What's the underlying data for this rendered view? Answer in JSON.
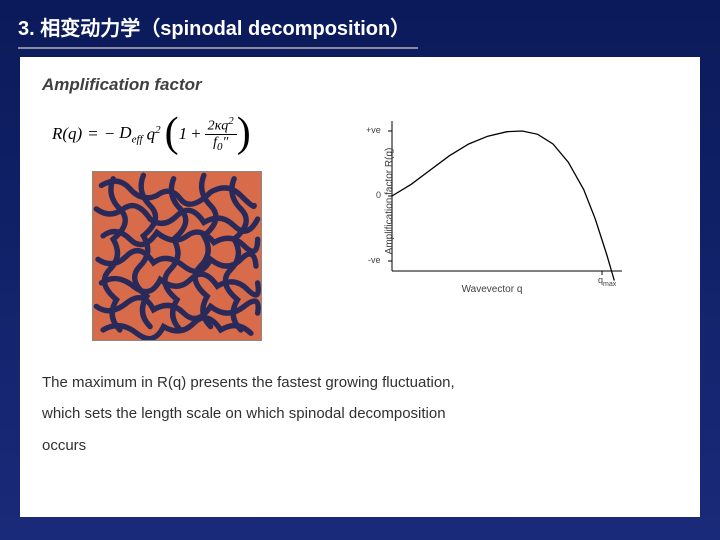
{
  "slide": {
    "title": "3. 相变动力学（spinodal decomposition）",
    "underline_color": "#8a8aa0",
    "bg_gradient_top": "#0a1a5a",
    "bg_gradient_bottom": "#1a2a7a"
  },
  "panel": {
    "heading": "Amplification factor",
    "formula": {
      "lhs": "R(q)",
      "equals": "=",
      "minus": "−",
      "D": "D",
      "Dsub": "eff",
      "q2": "q",
      "q2sup": "2",
      "one": "1",
      "plus": "+",
      "frac_num_coef": "2κ",
      "frac_num_var": "q",
      "frac_num_sup": "2",
      "frac_den_f": "f",
      "frac_den_sub": "0",
      "frac_den_prime": "″"
    },
    "pattern": {
      "bg_color": "#d86b4a",
      "worm_color": "#2a2a5a",
      "border_color": "#888888"
    },
    "chart": {
      "type": "line",
      "xlabel": "Wavevector  q",
      "ylabel": "Amplification factor R(q)",
      "ytick_top": "+ve",
      "ytick_mid": "0",
      "ytick_bot": "-ve",
      "xtick_right": "q",
      "xtick_right_sub": "max",
      "xlim": [
        0,
        1.2
      ],
      "ylim": [
        -1.2,
        1.2
      ],
      "curve_points": [
        [
          0.0,
          0.0
        ],
        [
          0.1,
          0.18
        ],
        [
          0.2,
          0.4
        ],
        [
          0.3,
          0.62
        ],
        [
          0.4,
          0.8
        ],
        [
          0.5,
          0.92
        ],
        [
          0.6,
          0.99
        ],
        [
          0.68,
          1.0
        ],
        [
          0.76,
          0.95
        ],
        [
          0.84,
          0.8
        ],
        [
          0.92,
          0.52
        ],
        [
          1.0,
          0.1
        ],
        [
          1.06,
          -0.35
        ],
        [
          1.12,
          -0.9
        ],
        [
          1.16,
          -1.3
        ]
      ],
      "line_color": "#000000",
      "axis_color": "#000000",
      "line_width": 1.2
    },
    "body_line1": "The maximum in R(q) presents the fastest growing fluctuation,",
    "body_line2": "which sets the length scale on which spinodal decomposition",
    "body_line3": "occurs"
  }
}
